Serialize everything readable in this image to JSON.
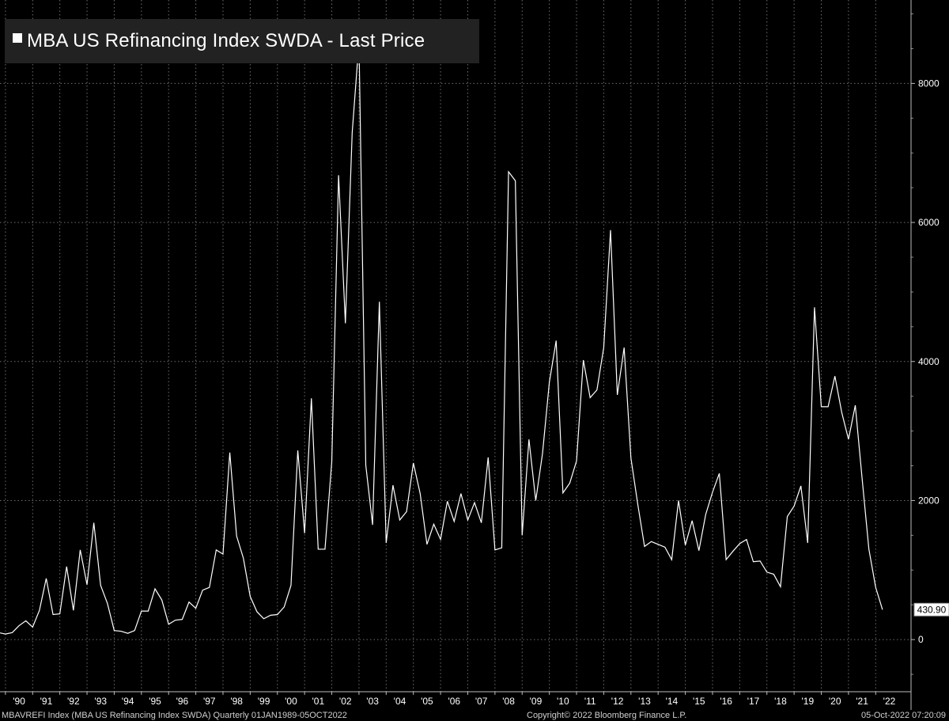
{
  "legend": {
    "title": "MBA US Refinancing Index SWDA - Last Price"
  },
  "footer": {
    "left": "MBAVREFI Index (MBA US Refinancing Index SWDA)  Quarterly 01JAN1989-05OCT2022",
    "center": "Copyright© 2022 Bloomberg Finance L.P.",
    "right": "05-Oct-2022 07:20:09"
  },
  "colors": {
    "background": "#000000",
    "line": "#ffffff",
    "grid": "#6e6e6e",
    "legend_bg": "#222222"
  },
  "chart_data": {
    "type": "line",
    "title": "MBA US Refinancing Index SWDA - Last Price",
    "frequency": "Quarterly",
    "x_start": 1989.75,
    "x_step": 0.25,
    "xlim": [
      1989.8,
      2023.3
    ],
    "ylim": [
      -750,
      9200
    ],
    "yticks": [
      0,
      2000,
      4000,
      6000,
      8000
    ],
    "xtick_labels": [
      "'90",
      "'91",
      "'92",
      "'93",
      "'94",
      "'95",
      "'96",
      "'97",
      "'98",
      "'99",
      "'00",
      "'01",
      "'02",
      "'03",
      "'04",
      "'05",
      "'06",
      "'07",
      "'08",
      "'09",
      "'10",
      "'11",
      "'12",
      "'13",
      "'14",
      "'15",
      "'16",
      "'17",
      "'18",
      "'19",
      "'20",
      "'21",
      "'22"
    ],
    "last_value_label": "430.90",
    "grid": true,
    "legend_position": "top-left",
    "series": [
      {
        "name": "MBA US Refinancing Index SWDA - Last Price",
        "values": [
          100,
          80,
          100,
          200,
          270,
          180,
          420,
          880,
          360,
          370,
          1050,
          420,
          1290,
          790,
          1680,
          780,
          520,
          130,
          120,
          90,
          130,
          410,
          410,
          730,
          570,
          220,
          280,
          290,
          540,
          450,
          710,
          750,
          1290,
          1230,
          2690,
          1490,
          1170,
          620,
          400,
          300,
          350,
          360,
          470,
          780,
          2720,
          1530,
          3470,
          1300,
          1300,
          2560,
          6680,
          4550,
          7290,
          8600,
          2510,
          1650,
          4860,
          1390,
          2220,
          1720,
          1840,
          2540,
          2100,
          1370,
          1660,
          1440,
          1990,
          1700,
          2100,
          1720,
          1970,
          1680,
          2620,
          1290,
          1320,
          6730,
          6600,
          1500,
          2880,
          2000,
          2680,
          3700,
          4300,
          2110,
          2250,
          2570,
          4020,
          3480,
          3590,
          4200,
          5890,
          3520,
          4200,
          2610,
          1950,
          1340,
          1410,
          1370,
          1330,
          1150,
          2000,
          1360,
          1710,
          1280,
          1800,
          2120,
          2390,
          1150,
          1270,
          1380,
          1440,
          1120,
          1130,
          970,
          940,
          760,
          1770,
          1920,
          2210,
          1390,
          4780,
          3350,
          3350,
          3790,
          3270,
          2880,
          3370,
          2320,
          1300,
          750,
          430.9
        ]
      }
    ]
  }
}
